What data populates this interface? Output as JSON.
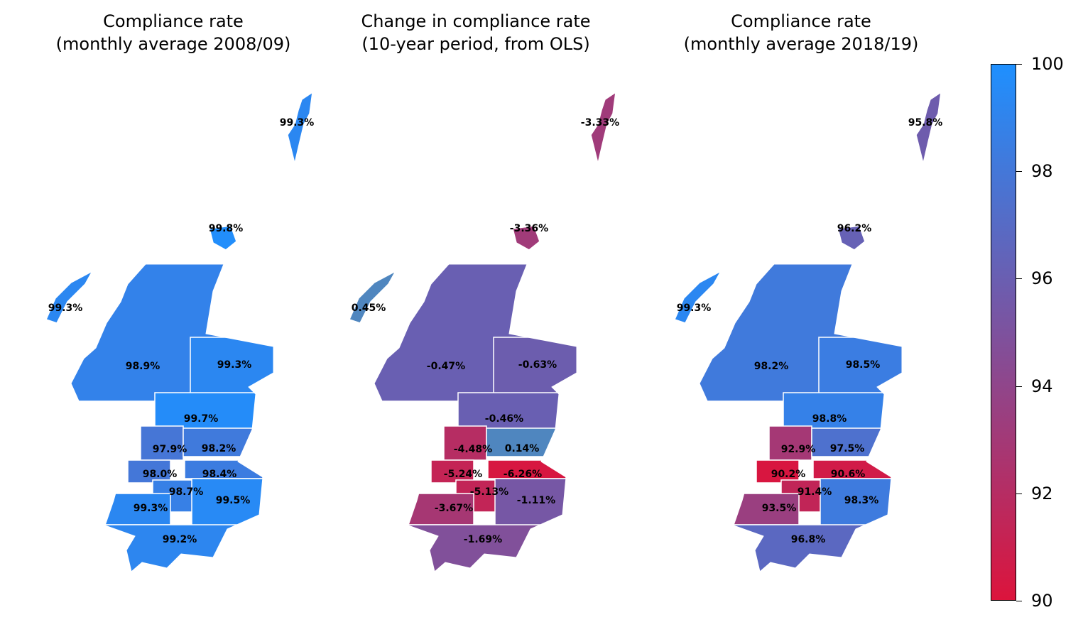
{
  "panels": [
    {
      "title": "Compliance rate\n(monthly average 2008/09)",
      "regions": [
        {
          "name": "Shetland",
          "value": 99.3,
          "label": "99.3%"
        },
        {
          "name": "Orkney",
          "value": 99.8,
          "label": "99.8%"
        },
        {
          "name": "Western Isles",
          "value": 99.3,
          "label": "99.3%"
        },
        {
          "name": "Highland",
          "value": 98.9,
          "label": "98.9%"
        },
        {
          "name": "Grampian",
          "value": 99.3,
          "label": "99.3%"
        },
        {
          "name": "Tayside",
          "value": 99.7,
          "label": "99.7%"
        },
        {
          "name": "Forth Valley",
          "value": 97.9,
          "label": "97.9%"
        },
        {
          "name": "Fife",
          "value": 98.2,
          "label": "98.2%"
        },
        {
          "name": "Greater Glasgow and Clyde",
          "value": 98.0,
          "label": "98.0%"
        },
        {
          "name": "Lothian",
          "value": 98.4,
          "label": "98.4%"
        },
        {
          "name": "Lanarkshire",
          "value": 98.7,
          "label": "98.7%"
        },
        {
          "name": "Ayrshire and Arran",
          "value": 99.3,
          "label": "99.3%"
        },
        {
          "name": "Borders",
          "value": 99.5,
          "label": "99.5%"
        },
        {
          "name": "Dumfries and Galloway",
          "value": 99.2,
          "label": "99.2%"
        }
      ]
    },
    {
      "title": "Change in compliance rate\n(10-year period, from OLS)",
      "regions": [
        {
          "name": "Shetland",
          "value": -3.33,
          "label": "-3.33%"
        },
        {
          "name": "Orkney",
          "value": -3.36,
          "label": "-3.36%"
        },
        {
          "name": "Western Isles",
          "value": 0.45,
          "label": "0.45%"
        },
        {
          "name": "Highland",
          "value": -0.47,
          "label": "-0.47%"
        },
        {
          "name": "Grampian",
          "value": -0.63,
          "label": "-0.63%"
        },
        {
          "name": "Tayside",
          "value": -0.46,
          "label": "-0.46%"
        },
        {
          "name": "Forth Valley",
          "value": -4.48,
          "label": "-4.48%"
        },
        {
          "name": "Fife",
          "value": 0.14,
          "label": "0.14%"
        },
        {
          "name": "Greater Glasgow and Clyde",
          "value": -5.24,
          "label": "-5.24%"
        },
        {
          "name": "Lothian",
          "value": -6.26,
          "label": "-6.26%"
        },
        {
          "name": "Lanarkshire",
          "value": -5.13,
          "label": "-5.13%"
        },
        {
          "name": "Ayrshire and Arran",
          "value": -3.67,
          "label": "-3.67%"
        },
        {
          "name": "Borders",
          "value": -1.11,
          "label": "-1.11%"
        },
        {
          "name": "Dumfries and Galloway",
          "value": -1.69,
          "label": "-1.69%"
        }
      ]
    },
    {
      "title": "Compliance rate\n(monthly average 2018/19)",
      "regions": [
        {
          "name": "Shetland",
          "value": 95.8,
          "label": "95.8%"
        },
        {
          "name": "Orkney",
          "value": 96.2,
          "label": "96.2%"
        },
        {
          "name": "Western Isles",
          "value": 99.3,
          "label": "99.3%"
        },
        {
          "name": "Highland",
          "value": 98.2,
          "label": "98.2%"
        },
        {
          "name": "Grampian",
          "value": 98.5,
          "label": "98.5%"
        },
        {
          "name": "Tayside",
          "value": 98.8,
          "label": "98.8%"
        },
        {
          "name": "Forth Valley",
          "value": 92.9,
          "label": "92.9%"
        },
        {
          "name": "Fife",
          "value": 97.5,
          "label": "97.5%"
        },
        {
          "name": "Greater Glasgow and Clyde",
          "value": 90.2,
          "label": "90.2%"
        },
        {
          "name": "Lothian",
          "value": 90.6,
          "label": "90.6%"
        },
        {
          "name": "Lanarkshire",
          "value": 91.4,
          "label": "91.4%"
        },
        {
          "name": "Ayrshire and Arran",
          "value": 93.5,
          "label": "93.5%"
        },
        {
          "name": "Borders",
          "value": 98.3,
          "label": "98.3%"
        },
        {
          "name": "Dumfries and Galloway",
          "value": 96.8,
          "label": "96.8%"
        }
      ]
    }
  ],
  "colorbar": {
    "min": 90,
    "max": 100,
    "low_color": "#dc143c",
    "high_color": "#1e90ff",
    "ticks": [
      "100",
      "98",
      "96",
      "94",
      "92",
      "90"
    ]
  }
}
